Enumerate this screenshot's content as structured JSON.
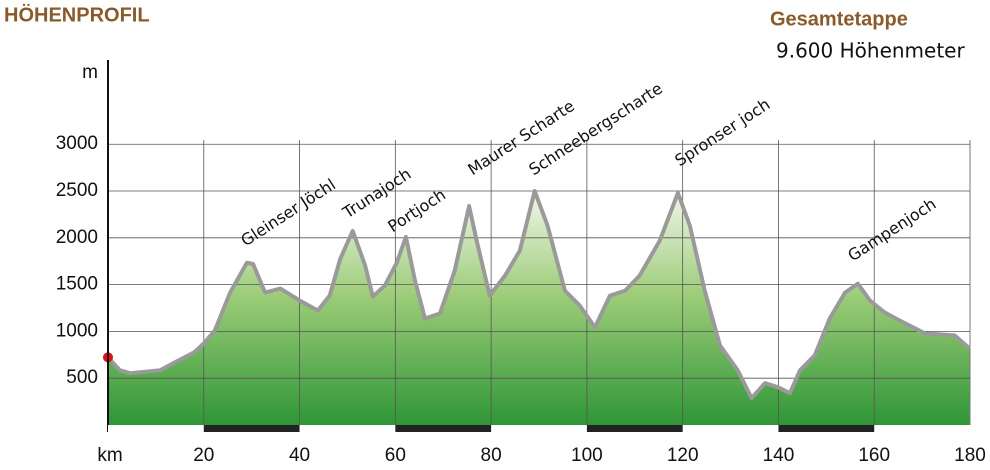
{
  "chart_data": {
    "type": "area",
    "title": "HÖHENPROFIL",
    "subtitle": "Gesamtetappe",
    "note": "9.600 Höhenmeter",
    "xlabel": "km",
    "ylabel": "m",
    "x": [
      0,
      2.5,
      4.6,
      10.9,
      14,
      18,
      20,
      22.3,
      25.5,
      29,
      30.3,
      32.8,
      36,
      40,
      43.8,
      46.3,
      48.5,
      51.1,
      53.7,
      55.3,
      57.8,
      60.3,
      62.2,
      64.1,
      66.2,
      69.3,
      72.4,
      75.4,
      77,
      79.7,
      82.9,
      86,
      89.1,
      91.8,
      95.4,
      98.5,
      101.7,
      104.8,
      108,
      111,
      115.2,
      119,
      121.5,
      124.6,
      127.8,
      131.5,
      134.4,
      137.2,
      139.9,
      142.4,
      144.5,
      147.6,
      150.7,
      153.9,
      156.6,
      159.1,
      162.2,
      165.3,
      170.6,
      176.8,
      179.9
    ],
    "values": [
      723,
      585,
      553,
      585,
      670,
      777,
      872,
      1010,
      1415,
      1734,
      1720,
      1415,
      1457,
      1330,
      1223,
      1383,
      1777,
      2074,
      1702,
      1372,
      1489,
      1734,
      2010,
      1543,
      1138,
      1191,
      1649,
      2340,
      1968,
      1383,
      1596,
      1862,
      2500,
      2128,
      1436,
      1277,
      1043,
      1383,
      1436,
      1596,
      1968,
      2479,
      2128,
      1436,
      851,
      585,
      287,
      447,
      404,
      340,
      585,
      745,
      1138,
      1415,
      1511,
      1330,
      1202,
      1117,
      979,
      957,
      819
    ],
    "color": "#9a9a9a",
    "xlim": [
      0,
      180
    ],
    "xticks": [
      20,
      40,
      60,
      80,
      100,
      120,
      140,
      160,
      180
    ],
    "ylim": [
      0,
      3900
    ],
    "yticks": [
      500,
      1000,
      1500,
      2000,
      2500,
      3000
    ],
    "grid": true,
    "annotations": [
      "Gleinser Jöchl",
      "Trunajoch",
      "Portjoch",
      "Maurer Scharte",
      "Schneebergscharte",
      "Spronser joch",
      "Gampenjoch"
    ]
  }
}
